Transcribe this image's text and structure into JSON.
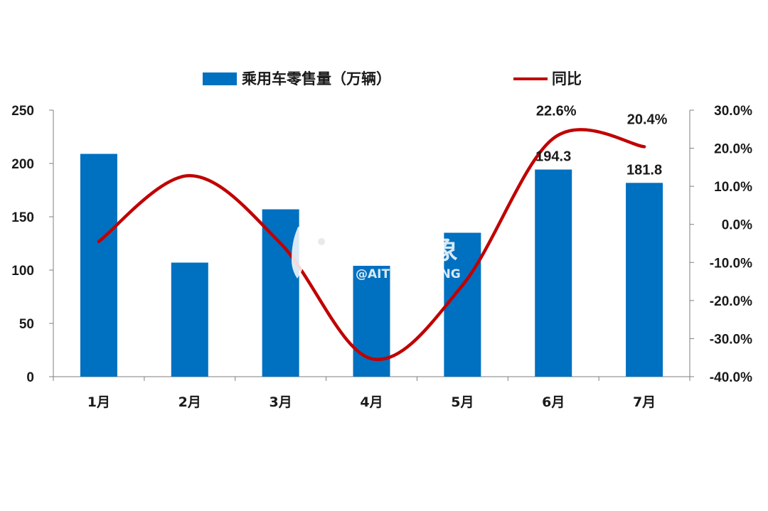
{
  "chart_data": {
    "type": "bar",
    "categories": [
      "1月",
      "2月",
      "3月",
      "4月",
      "5月",
      "6月",
      "7月"
    ],
    "series": [
      {
        "name": "乘用车零售量（万辆）",
        "type": "bar",
        "axis": "left",
        "color": "#0070C0",
        "values": [
          209,
          107,
          157,
          104,
          135,
          194.3,
          181.8
        ],
        "data_labels": [
          "",
          "",
          "",
          "",
          "",
          "194.3",
          "181.8"
        ]
      },
      {
        "name": "同比",
        "type": "line",
        "axis": "right",
        "color": "#C00000",
        "values": [
          -4.5,
          12.8,
          -5.0,
          -35.3,
          -16.0,
          22.6,
          20.4
        ],
        "data_labels": [
          "",
          "",
          "",
          "",
          "",
          "22.6%",
          "20.4%"
        ]
      }
    ],
    "y_left": {
      "ylim": [
        0,
        250
      ],
      "ticks": [
        "0",
        "50",
        "100",
        "150",
        "200",
        "250"
      ]
    },
    "y_right": {
      "ylim": [
        -40,
        30
      ],
      "ticks": [
        "-40.0%",
        "-30.0%",
        "-20.0%",
        "-10.0%",
        "0.0%",
        "10.0%",
        "20.0%",
        "30.0%"
      ]
    },
    "legend_position": "top-center",
    "grid": false
  },
  "watermark": {
    "name": "艾特大象",
    "handle": "@AITEDAXIANG"
  }
}
